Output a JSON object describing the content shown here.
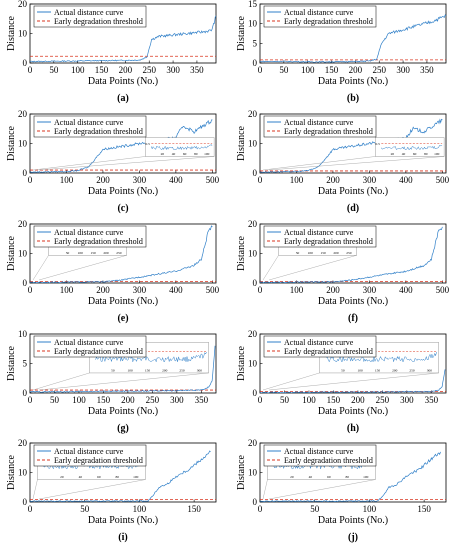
{
  "colors": {
    "curve": "#2f7fc8",
    "threshold": "#d9341f",
    "axis": "#000000",
    "inset_border": "#999999"
  },
  "legend": {
    "actual": "Actual distance curve",
    "threshold": "Early degradation threshold"
  },
  "chart_data": [
    {
      "id": "a",
      "type": "line",
      "panel_label": "(a)",
      "xlabel": "Data Points (No.)",
      "ylabel": "Distance",
      "xlim": [
        0,
        390
      ],
      "ylim": [
        0,
        20
      ],
      "xticks": [
        0,
        50,
        100,
        150,
        200,
        250,
        300,
        350
      ],
      "yticks": [
        0,
        10,
        20
      ],
      "threshold": 2.3,
      "series": [
        {
          "name": "Actual distance curve",
          "x": [
            0,
            50,
            100,
            150,
            200,
            230,
            245,
            255,
            270,
            300,
            330,
            360,
            380,
            385,
            390
          ],
          "y": [
            0.5,
            0.6,
            0.7,
            0.8,
            0.9,
            1.0,
            2.0,
            8.0,
            9.0,
            9.5,
            10.0,
            10.5,
            11.0,
            13.0,
            16.0
          ]
        }
      ]
    },
    {
      "id": "b",
      "type": "line",
      "panel_label": "(b)",
      "xlabel": "Data Points (No.)",
      "ylabel": "Distance",
      "xlim": [
        0,
        390
      ],
      "ylim": [
        0,
        15
      ],
      "xticks": [
        0,
        50,
        100,
        150,
        200,
        250,
        300,
        350
      ],
      "yticks": [
        0,
        5,
        10,
        15
      ],
      "threshold": 0.8,
      "series": [
        {
          "name": "Actual distance curve",
          "x": [
            0,
            50,
            100,
            150,
            200,
            230,
            245,
            255,
            270,
            300,
            330,
            360,
            390
          ],
          "y": [
            0.4,
            0.4,
            0.3,
            0.3,
            0.4,
            0.5,
            1.0,
            5.0,
            7.5,
            8.5,
            9.5,
            10.5,
            12.0
          ]
        }
      ]
    },
    {
      "id": "c",
      "type": "line",
      "panel_label": "(c)",
      "xlabel": "Data Points (No.)",
      "ylabel": "Distance",
      "xlim": [
        0,
        510
      ],
      "ylim": [
        0,
        20
      ],
      "xticks": [
        0,
        100,
        200,
        300,
        400,
        500
      ],
      "yticks": [
        0,
        10,
        20
      ],
      "threshold": 1.0,
      "inset": {
        "xticks": [
          "20",
          "40",
          "60",
          "80",
          "100"
        ],
        "ytick": "0.5"
      },
      "series": [
        {
          "name": "Actual distance curve",
          "x": [
            0,
            50,
            100,
            130,
            160,
            180,
            200,
            250,
            300,
            350,
            400,
            420,
            450,
            500
          ],
          "y": [
            0.3,
            0.4,
            0.5,
            0.8,
            2.0,
            5.0,
            8.0,
            9.0,
            10.0,
            11.0,
            12.0,
            16.0,
            14.0,
            18.0
          ]
        }
      ]
    },
    {
      "id": "d",
      "type": "line",
      "panel_label": "(d)",
      "xlabel": "Data Points (No.)",
      "ylabel": "Distance",
      "xlim": [
        0,
        510
      ],
      "ylim": [
        0,
        20
      ],
      "xticks": [
        0,
        100,
        200,
        300,
        400,
        500
      ],
      "yticks": [
        0,
        10,
        20
      ],
      "threshold": 0.7,
      "inset": {
        "xticks": [
          "20",
          "40",
          "60",
          "80",
          "100"
        ],
        "ytick": "0.5"
      },
      "series": [
        {
          "name": "Actual distance curve",
          "x": [
            0,
            50,
            100,
            130,
            160,
            180,
            200,
            250,
            300,
            350,
            400,
            420,
            450,
            500
          ],
          "y": [
            0.3,
            0.4,
            0.5,
            0.8,
            2.0,
            5.0,
            8.0,
            9.0,
            10.0,
            11.0,
            12.0,
            15.0,
            14.0,
            18.0
          ]
        }
      ]
    },
    {
      "id": "e",
      "type": "line",
      "panel_label": "(e)",
      "xlabel": "Data Points (No.)",
      "ylabel": "Distance",
      "xlim": [
        0,
        510
      ],
      "ylim": [
        0,
        20
      ],
      "xticks": [
        0,
        100,
        200,
        300,
        400,
        500
      ],
      "yticks": [
        0,
        10,
        20
      ],
      "threshold": 0.5,
      "inset": {
        "xticks": [
          "50",
          "100",
          "150",
          "200",
          "250"
        ],
        "ytick": "0.5"
      },
      "series": [
        {
          "name": "Actual distance curve",
          "x": [
            0,
            100,
            200,
            250,
            300,
            350,
            400,
            450,
            470,
            490,
            500
          ],
          "y": [
            0.2,
            0.3,
            0.4,
            1.0,
            2.0,
            3.0,
            4.0,
            6.0,
            8.0,
            18.0,
            19.0
          ]
        }
      ]
    },
    {
      "id": "f",
      "type": "line",
      "panel_label": "(f)",
      "xlabel": "Data Points (No.)",
      "ylabel": "Distance",
      "xlim": [
        0,
        510
      ],
      "ylim": [
        0,
        20
      ],
      "xticks": [
        0,
        100,
        200,
        300,
        400,
        500
      ],
      "yticks": [
        0,
        10,
        20
      ],
      "threshold": 0.5,
      "inset": {
        "xticks": [
          "50",
          "100",
          "150",
          "200",
          "250"
        ],
        "ytick": "0.5"
      },
      "series": [
        {
          "name": "Actual distance curve",
          "x": [
            0,
            100,
            200,
            250,
            300,
            350,
            400,
            450,
            470,
            490,
            500
          ],
          "y": [
            0.2,
            0.3,
            0.4,
            1.0,
            2.0,
            3.0,
            4.0,
            6.0,
            8.0,
            18.0,
            19.0
          ]
        }
      ]
    },
    {
      "id": "g",
      "type": "line",
      "panel_label": "(g)",
      "xlabel": "Data Points (No.)",
      "ylabel": "Distance",
      "xlim": [
        0,
        380
      ],
      "ylim": [
        0,
        10
      ],
      "xticks": [
        0,
        50,
        100,
        150,
        200,
        250,
        300,
        350
      ],
      "yticks": [
        0,
        5,
        10
      ],
      "threshold": 0.5,
      "inset": {
        "xticks": [
          "50",
          "100",
          "150",
          "200",
          "250",
          "300"
        ],
        "ytick": "0.5"
      },
      "series": [
        {
          "name": "Actual distance curve",
          "x": [
            0,
            50,
            100,
            150,
            200,
            250,
            300,
            350,
            365,
            372,
            378
          ],
          "y": [
            0.2,
            0.2,
            0.25,
            0.3,
            0.3,
            0.35,
            0.4,
            0.5,
            1.0,
            2.0,
            8.0
          ]
        }
      ]
    },
    {
      "id": "h",
      "type": "line",
      "panel_label": "(h)",
      "xlabel": "Data Points (No.)",
      "ylabel": "Distance",
      "xlim": [
        0,
        380
      ],
      "ylim": [
        0,
        20
      ],
      "xticks": [
        0,
        50,
        100,
        150,
        200,
        250,
        300,
        350
      ],
      "yticks": [
        0,
        10,
        20
      ],
      "threshold": 0.5,
      "inset": {
        "xticks": [
          "50",
          "100",
          "150",
          "200",
          "250",
          "300"
        ],
        "ytick": "0.5"
      },
      "series": [
        {
          "name": "Actual distance curve",
          "x": [
            0,
            50,
            100,
            150,
            200,
            250,
            300,
            350,
            365,
            372,
            378
          ],
          "y": [
            0.2,
            0.2,
            0.25,
            0.3,
            0.3,
            0.35,
            0.4,
            0.5,
            1.0,
            2.0,
            8.0
          ]
        }
      ]
    },
    {
      "id": "i",
      "type": "line",
      "panel_label": "(i)",
      "xlabel": "Data Points (No.)",
      "ylabel": "Distance",
      "xlim": [
        0,
        170
      ],
      "ylim": [
        0,
        20
      ],
      "xticks": [
        0,
        50,
        100,
        150
      ],
      "yticks": [
        0,
        10,
        20
      ],
      "threshold": 0.8,
      "inset": {
        "xticks": [
          "20",
          "40",
          "60",
          "80",
          "100"
        ],
        "ytick": "0.5"
      },
      "series": [
        {
          "name": "Actual distance curve",
          "x": [
            0,
            50,
            100,
            108,
            112,
            118,
            125,
            135,
            145,
            155,
            165
          ],
          "y": [
            0.3,
            0.3,
            0.3,
            0.4,
            2.0,
            5.0,
            6.0,
            9.0,
            11.0,
            14.0,
            17.0
          ]
        }
      ]
    },
    {
      "id": "j",
      "type": "line",
      "panel_label": "(j)",
      "xlabel": "Data Points (No.)",
      "ylabel": "Distance",
      "xlim": [
        0,
        170
      ],
      "ylim": [
        0,
        20
      ],
      "xticks": [
        0,
        50,
        100,
        150
      ],
      "yticks": [
        0,
        10,
        20
      ],
      "threshold": 0.8,
      "inset": {
        "xticks": [
          "20",
          "40",
          "60",
          "80",
          "100"
        ],
        "ytick": "0.5"
      },
      "series": [
        {
          "name": "Actual distance curve",
          "x": [
            0,
            50,
            100,
            108,
            112,
            118,
            125,
            135,
            145,
            155,
            165
          ],
          "y": [
            0.3,
            0.3,
            0.3,
            0.4,
            2.0,
            5.0,
            6.0,
            9.0,
            11.0,
            14.0,
            17.0
          ]
        }
      ]
    }
  ]
}
